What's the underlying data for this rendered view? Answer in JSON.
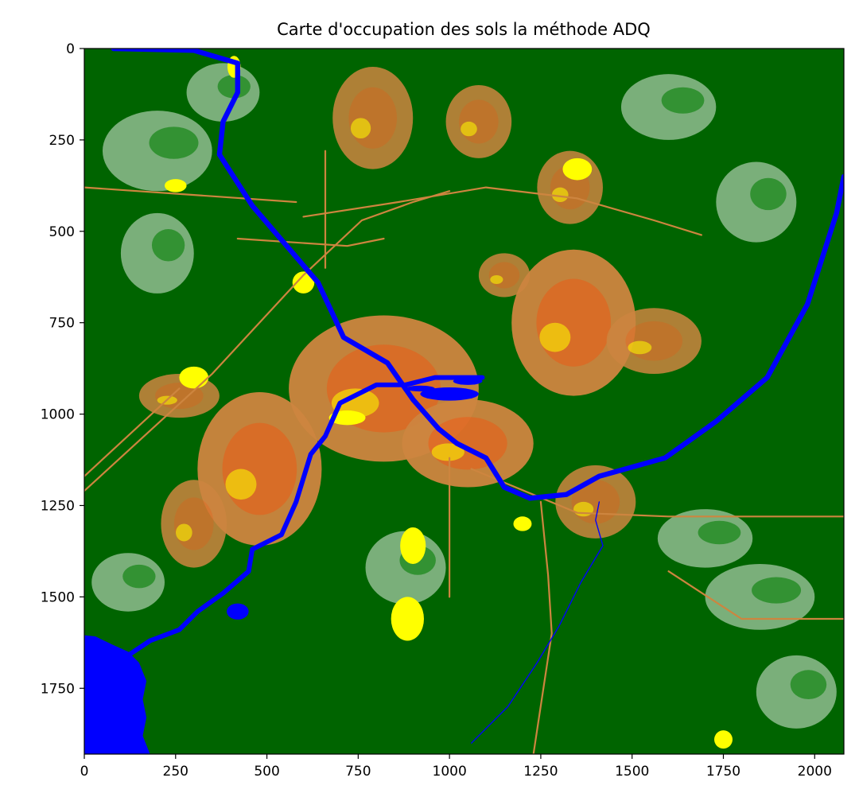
{
  "chart_data": {
    "type": "heatmap",
    "title": "Carte d'occupation des sols la méthode ADQ",
    "xlabel": "",
    "ylabel": "",
    "xlim": [
      0,
      2080
    ],
    "ylim": [
      1930,
      0
    ],
    "x_ticks": [
      0,
      250,
      500,
      750,
      1000,
      1250,
      1500,
      1750,
      2000
    ],
    "y_ticks": [
      0,
      250,
      500,
      750,
      1000,
      1250,
      1500,
      1750
    ],
    "grid": false,
    "legend": "none",
    "colors": {
      "forest": "#006400",
      "vegetation": "#228b22",
      "grass": "#8fbc8f",
      "urban": "#cd853f",
      "dense_urban": "#ff4500",
      "bare": "#ffff00",
      "soil": "#8b4513",
      "road": "#808080",
      "water": "#0000ff"
    },
    "rivers": [
      {
        "name": "",
        "path": [
          [
            80,
            0
          ],
          [
            300,
            5
          ],
          [
            420,
            40
          ],
          [
            420,
            120
          ],
          [
            380,
            200
          ],
          [
            370,
            290
          ],
          [
            460,
            430
          ],
          [
            640,
            640
          ],
          [
            710,
            790
          ],
          [
            830,
            860
          ],
          [
            900,
            960
          ],
          [
            970,
            1040
          ],
          [
            1020,
            1080
          ],
          [
            1100,
            1120
          ],
          [
            1150,
            1200
          ],
          [
            1220,
            1230
          ],
          [
            1320,
            1220
          ],
          [
            1410,
            1170
          ],
          [
            1590,
            1120
          ],
          [
            1730,
            1020
          ],
          [
            1870,
            900
          ],
          [
            1980,
            700
          ],
          [
            2060,
            450
          ],
          [
            2080,
            350
          ]
        ],
        "width": 14
      },
      {
        "name": "",
        "path": [
          [
            1090,
            900
          ],
          [
            960,
            900
          ],
          [
            880,
            920
          ],
          [
            800,
            920
          ],
          [
            700,
            970
          ],
          [
            660,
            1060
          ],
          [
            620,
            1110
          ],
          [
            580,
            1240
          ],
          [
            540,
            1330
          ],
          [
            460,
            1370
          ],
          [
            450,
            1430
          ],
          [
            380,
            1490
          ],
          [
            310,
            1540
          ],
          [
            260,
            1590
          ],
          [
            180,
            1620
          ],
          [
            120,
            1660
          ]
        ],
        "width": 13
      },
      {
        "name": "",
        "path": [
          [
            1410,
            1240
          ],
          [
            1400,
            1290
          ],
          [
            1420,
            1360
          ],
          [
            1360,
            1460
          ],
          [
            1300,
            1580
          ],
          [
            1240,
            1680
          ],
          [
            1160,
            1800
          ],
          [
            1060,
            1900
          ]
        ],
        "width": 3
      }
    ],
    "lakes": [
      {
        "name": "",
        "points": [
          [
            0,
            1605
          ],
          [
            30,
            1608
          ],
          [
            80,
            1632
          ],
          [
            120,
            1650
          ],
          [
            150,
            1680
          ],
          [
            170,
            1730
          ],
          [
            160,
            1780
          ],
          [
            170,
            1830
          ],
          [
            160,
            1880
          ],
          [
            180,
            1930
          ],
          [
            0,
            1930
          ]
        ]
      }
    ],
    "water_bodies": [
      {
        "name": "",
        "center": [
          1000,
          945
        ],
        "rx": 80,
        "ry": 18
      },
      {
        "name": "",
        "center": [
          920,
          930
        ],
        "rx": 40,
        "ry": 8
      },
      {
        "name": "",
        "center": [
          420,
          1540
        ],
        "rx": 30,
        "ry": 22
      },
      {
        "name": "",
        "center": [
          1050,
          910
        ],
        "rx": 40,
        "ry": 10
      }
    ],
    "urban_areas": [
      {
        "name": "",
        "center": [
          820,
          930
        ],
        "rx": 260,
        "ry": 200,
        "density": "dense"
      },
      {
        "name": "",
        "center": [
          1340,
          750
        ],
        "rx": 170,
        "ry": 200,
        "density": "dense"
      },
      {
        "name": "",
        "center": [
          480,
          1150
        ],
        "rx": 170,
        "ry": 210,
        "density": "dense"
      },
      {
        "name": "",
        "center": [
          1560,
          800
        ],
        "rx": 130,
        "ry": 90,
        "density": "medium"
      },
      {
        "name": "",
        "center": [
          1050,
          1080
        ],
        "rx": 180,
        "ry": 120,
        "density": "dense"
      },
      {
        "name": "",
        "center": [
          790,
          190
        ],
        "rx": 110,
        "ry": 140,
        "density": "medium"
      },
      {
        "name": "",
        "center": [
          1080,
          200
        ],
        "rx": 90,
        "ry": 100,
        "density": "medium"
      },
      {
        "name": "",
        "center": [
          1330,
          380
        ],
        "rx": 90,
        "ry": 100,
        "density": "medium"
      },
      {
        "name": "",
        "center": [
          1400,
          1240
        ],
        "rx": 110,
        "ry": 100,
        "density": "medium"
      },
      {
        "name": "",
        "center": [
          300,
          1300
        ],
        "rx": 90,
        "ry": 120,
        "density": "medium"
      },
      {
        "name": "",
        "center": [
          1150,
          620
        ],
        "rx": 70,
        "ry": 60,
        "density": "medium"
      },
      {
        "name": "",
        "center": [
          260,
          950
        ],
        "rx": 110,
        "ry": 60,
        "density": "medium"
      }
    ],
    "clearings": [
      {
        "center": [
          200,
          280
        ],
        "rx": 150,
        "ry": 110
      },
      {
        "center": [
          200,
          560
        ],
        "rx": 100,
        "ry": 110
      },
      {
        "center": [
          1840,
          420
        ],
        "rx": 110,
        "ry": 110
      },
      {
        "center": [
          1850,
          1500
        ],
        "rx": 150,
        "ry": 90
      },
      {
        "center": [
          1700,
          1340
        ],
        "rx": 130,
        "ry": 80
      },
      {
        "center": [
          380,
          120
        ],
        "rx": 100,
        "ry": 80
      },
      {
        "center": [
          1950,
          1760
        ],
        "rx": 110,
        "ry": 100
      },
      {
        "center": [
          120,
          1460
        ],
        "rx": 100,
        "ry": 80
      },
      {
        "center": [
          1600,
          160
        ],
        "rx": 130,
        "ry": 90
      },
      {
        "center": [
          880,
          1420
        ],
        "rx": 110,
        "ry": 100
      }
    ],
    "bare_patches": [
      {
        "center": [
          885,
          1560
        ],
        "rx": 45,
        "ry": 60
      },
      {
        "center": [
          900,
          1360
        ],
        "rx": 35,
        "ry": 50
      },
      {
        "center": [
          250,
          375
        ],
        "rx": 30,
        "ry": 18
      },
      {
        "center": [
          410,
          50
        ],
        "rx": 18,
        "ry": 30
      },
      {
        "center": [
          1350,
          330
        ],
        "rx": 40,
        "ry": 30
      },
      {
        "center": [
          300,
          900
        ],
        "rx": 40,
        "ry": 30
      },
      {
        "center": [
          600,
          640
        ],
        "rx": 30,
        "ry": 30
      },
      {
        "center": [
          1750,
          1890
        ],
        "rx": 25,
        "ry": 25
      },
      {
        "center": [
          720,
          1010
        ],
        "rx": 50,
        "ry": 20
      },
      {
        "center": [
          1200,
          1300
        ],
        "rx": 25,
        "ry": 20
      }
    ],
    "roads": [
      [
        [
          0,
          1210
        ],
        [
          350,
          890
        ],
        [
          600,
          620
        ],
        [
          760,
          470
        ],
        [
          900,
          420
        ],
        [
          1000,
          390
        ]
      ],
      [
        [
          600,
          460
        ],
        [
          860,
          420
        ],
        [
          1100,
          380
        ],
        [
          1350,
          410
        ],
        [
          1560,
          470
        ],
        [
          1690,
          510
        ]
      ],
      [
        [
          0,
          1170
        ],
        [
          260,
          930
        ]
      ],
      [
        [
          1060,
          1150
        ],
        [
          1350,
          1270
        ],
        [
          1600,
          1280
        ],
        [
          2080,
          1280
        ]
      ],
      [
        [
          1250,
          1240
        ],
        [
          1270,
          1440
        ],
        [
          1280,
          1600
        ],
        [
          1230,
          1930
        ]
      ],
      [
        [
          420,
          520
        ],
        [
          720,
          540
        ],
        [
          820,
          520
        ]
      ],
      [
        [
          660,
          280
        ],
        [
          660,
          600
        ]
      ],
      [
        [
          1600,
          1430
        ],
        [
          1800,
          1560
        ],
        [
          2080,
          1560
        ]
      ],
      [
        [
          0,
          380
        ],
        [
          580,
          420
        ]
      ],
      [
        [
          1000,
          1120
        ],
        [
          1000,
          1500
        ]
      ]
    ]
  }
}
